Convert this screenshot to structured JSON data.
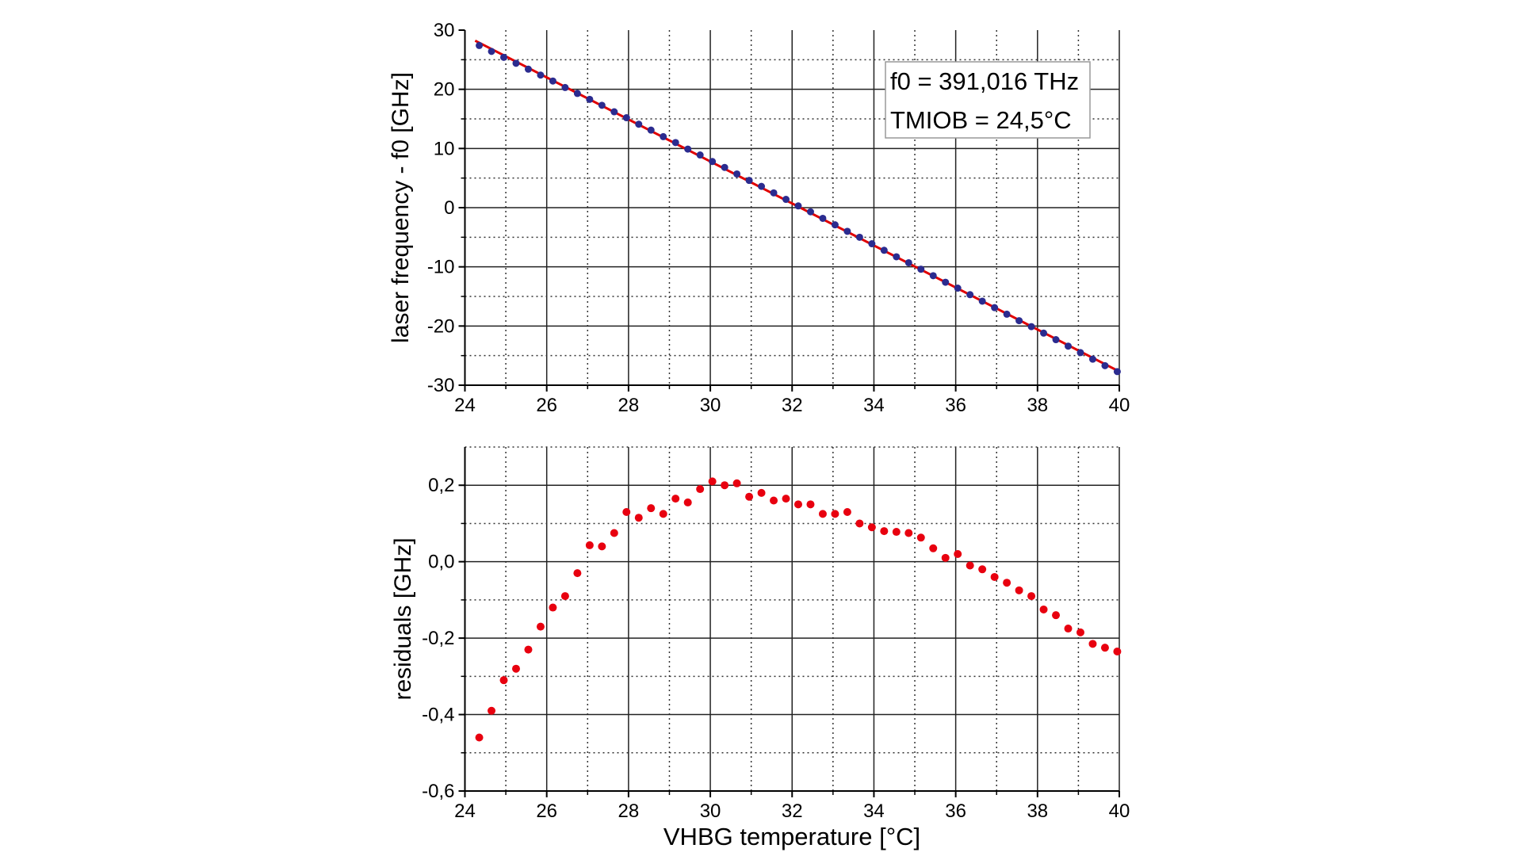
{
  "chart_data": [
    {
      "type": "scatter",
      "ylabel": "laser frequency - f0 [GHz]",
      "xlim": [
        24,
        40
      ],
      "ylim": [
        -30,
        30
      ],
      "xticks": [
        "24",
        "26",
        "28",
        "30",
        "32",
        "34",
        "36",
        "38",
        "40"
      ],
      "yticks": [
        "30",
        "20",
        "10",
        "0",
        "-10",
        "-20",
        "-30"
      ],
      "grid": true,
      "annotation": {
        "line1": "f0 = 391,016 THz",
        "line2": "TMIOB = 24,5°C",
        "placement": "top-right"
      },
      "colors": {
        "points": "#2b2b8f",
        "fit": "#e00000"
      },
      "fit": {
        "type": "linear",
        "slope": -3.55,
        "intercept": 114.31
      },
      "x": [
        24.35,
        24.65,
        24.95,
        25.25,
        25.55,
        25.85,
        26.15,
        26.45,
        26.75,
        27.05,
        27.35,
        27.65,
        27.95,
        28.25,
        28.55,
        28.85,
        29.15,
        29.45,
        29.75,
        30.05,
        30.35,
        30.65,
        30.95,
        31.25,
        31.55,
        31.85,
        32.15,
        32.45,
        32.75,
        33.05,
        33.35,
        33.65,
        33.95,
        34.25,
        34.55,
        34.85,
        35.15,
        35.45,
        35.75,
        36.05,
        36.35,
        36.65,
        36.95,
        37.25,
        37.55,
        37.85,
        38.15,
        38.45,
        38.75,
        39.05,
        39.35,
        39.65,
        39.95
      ],
      "y": [
        27.4,
        26.4,
        25.4,
        24.4,
        23.4,
        22.4,
        21.4,
        20.3,
        19.3,
        18.3,
        17.3,
        16.2,
        15.2,
        14.1,
        13.1,
        12.0,
        11.0,
        9.9,
        8.9,
        7.8,
        6.8,
        5.7,
        4.6,
        3.6,
        2.5,
        1.4,
        0.3,
        -0.7,
        -1.8,
        -2.9,
        -4.0,
        -5.0,
        -6.1,
        -7.2,
        -8.3,
        -9.3,
        -10.4,
        -11.5,
        -12.6,
        -13.6,
        -14.7,
        -15.8,
        -16.9,
        -18.0,
        -19.1,
        -20.1,
        -21.2,
        -22.3,
        -23.4,
        -24.5,
        -25.6,
        -26.7,
        -27.7
      ]
    },
    {
      "type": "scatter",
      "xlabel": "VHBG temperature [°C]",
      "ylabel": "residuals [GHz]",
      "xlim": [
        24,
        40
      ],
      "ylim": [
        -0.6,
        0.3
      ],
      "xticks": [
        "24",
        "26",
        "28",
        "30",
        "32",
        "34",
        "36",
        "38",
        "40"
      ],
      "yticks": [
        "0,2",
        "0,0",
        "-0,2",
        "-0,4",
        "-0,6"
      ],
      "grid": true,
      "colors": {
        "points": "#e8000f"
      },
      "x": [
        24.35,
        24.65,
        24.95,
        25.25,
        25.55,
        25.85,
        26.15,
        26.45,
        26.75,
        27.05,
        27.35,
        27.65,
        27.95,
        28.25,
        28.55,
        28.85,
        29.15,
        29.45,
        29.75,
        30.05,
        30.35,
        30.65,
        30.95,
        31.25,
        31.55,
        31.85,
        32.15,
        32.45,
        32.75,
        33.05,
        33.35,
        33.65,
        33.95,
        34.25,
        34.55,
        34.85,
        35.15,
        35.45,
        35.75,
        36.05,
        36.35,
        36.65,
        36.95,
        37.25,
        37.55,
        37.85,
        38.15,
        38.45,
        38.75,
        39.05,
        39.35,
        39.65,
        39.95
      ],
      "y": [
        -0.46,
        -0.39,
        -0.31,
        -0.28,
        -0.23,
        -0.17,
        -0.12,
        -0.09,
        -0.03,
        0.043,
        0.04,
        0.075,
        0.13,
        0.115,
        0.14,
        0.125,
        0.165,
        0.155,
        0.19,
        0.21,
        0.2,
        0.205,
        0.17,
        0.18,
        0.16,
        0.165,
        0.15,
        0.15,
        0.125,
        0.125,
        0.13,
        0.1,
        0.09,
        0.08,
        0.078,
        0.075,
        0.063,
        0.035,
        0.01,
        0.02,
        -0.01,
        -0.02,
        -0.04,
        -0.055,
        -0.075,
        -0.09,
        -0.125,
        -0.14,
        -0.175,
        -0.185,
        -0.215,
        -0.225,
        -0.235
      ]
    }
  ]
}
